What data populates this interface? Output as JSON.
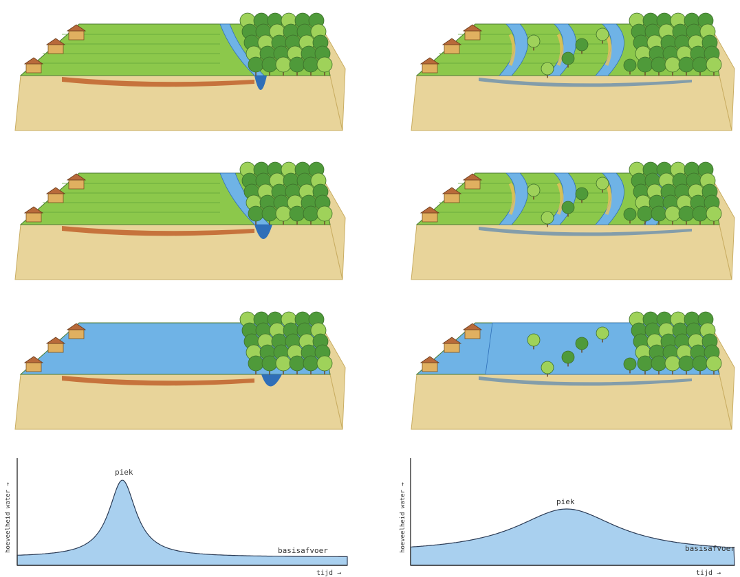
{
  "panels": [
    {
      "stage": 1,
      "side": "left",
      "land": "green",
      "river": "narrow",
      "flood": false
    },
    {
      "stage": 2,
      "side": "left",
      "land": "green",
      "river": "widening",
      "flood": false
    },
    {
      "stage": 3,
      "side": "left",
      "land": "blue",
      "river": "flooded",
      "flood": true
    },
    {
      "stage": 1,
      "side": "right",
      "land": "wetland",
      "river": "braided",
      "flood": false
    },
    {
      "stage": 2,
      "side": "right",
      "land": "wetland",
      "river": "braided-wide",
      "flood": false
    },
    {
      "stage": 3,
      "side": "right",
      "land": "blue",
      "river": "flooded",
      "flood": true
    }
  ],
  "hydrographs": {
    "left": {
      "peak_label": "piek",
      "base_label": "basisafvoer",
      "ylabel": "hoeveelheid water →",
      "xlabel": "tijd →",
      "shape": "sharp"
    },
    "right": {
      "peak_label": "piek",
      "base_label": "basisafvoer",
      "ylabel": "hoeveelheid water →",
      "xlabel": "tijd →",
      "shape": "broad"
    }
  },
  "colors": {
    "sand": "#e8d49a",
    "sand_edge": "#c9ad62",
    "clay": "#c0622b",
    "grass": "#8cc84b",
    "grass_dark": "#5fa33a",
    "water": "#6fb3e6",
    "water_dark": "#2f6fb8",
    "tree": "#4f9a3a",
    "tree_light": "#9fd25a",
    "hydro_fill": "#a9d0ef"
  }
}
